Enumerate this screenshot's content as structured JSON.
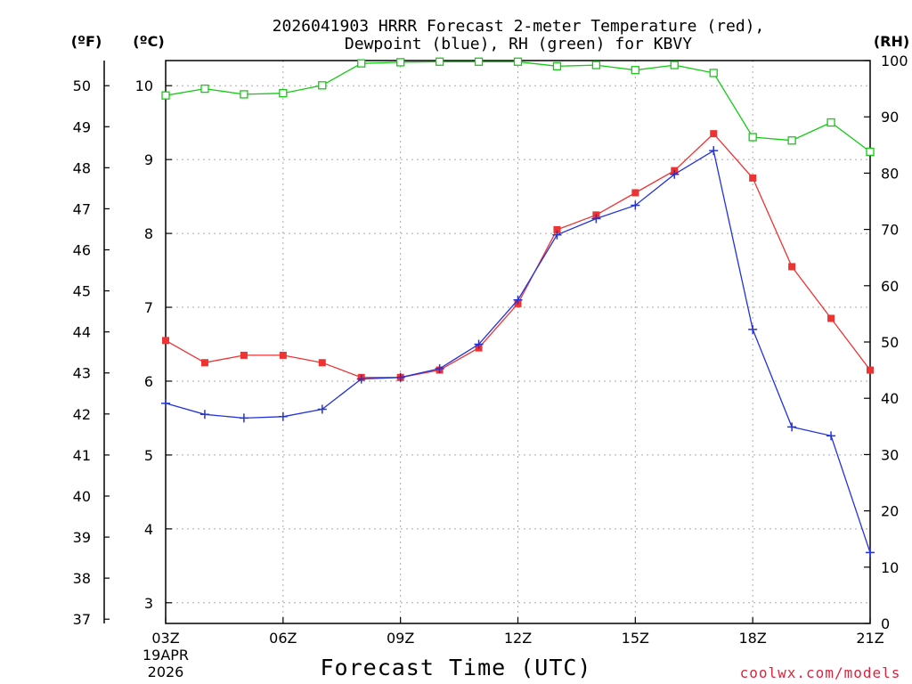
{
  "chart_data": {
    "type": "line",
    "title_line1": "2026041903 HRRR Forecast 2-meter Temperature (red),",
    "title_line2": "Dewpoint (blue), RH (green) for KBVY",
    "xlabel": "Forecast Time (UTC)",
    "date_label_day": "19APR",
    "date_label_year": "2026",
    "credit": "coolwx.com/models",
    "unit_f": "(ºF)",
    "unit_c": "(ºC)",
    "unit_rh": "(RH)",
    "x_hours": [
      3,
      4,
      5,
      6,
      7,
      8,
      9,
      10,
      11,
      12,
      13,
      14,
      15,
      16,
      17,
      18,
      19,
      20,
      21
    ],
    "x_tick_hours": [
      3,
      6,
      9,
      12,
      15,
      18,
      21
    ],
    "x_tick_labels": [
      "03Z",
      "06Z",
      "09Z",
      "12Z",
      "15Z",
      "18Z",
      "21Z"
    ],
    "celsius_range": [
      2.72,
      10.34
    ],
    "celsius_ticks": [
      3,
      4,
      5,
      6,
      7,
      8,
      9,
      10
    ],
    "celsius_tick_labels": [
      "3",
      "4",
      "5",
      "6",
      "7",
      "8",
      "9",
      "10"
    ],
    "fahrenheit_ticks": [
      37,
      38,
      39,
      40,
      41,
      42,
      43,
      44,
      45,
      46,
      47,
      48,
      49,
      50
    ],
    "fahrenheit_tick_labels": [
      "37",
      "38",
      "39",
      "40",
      "41",
      "42",
      "43",
      "44",
      "45",
      "46",
      "47",
      "48",
      "49",
      "50"
    ],
    "rh_range": [
      0,
      100
    ],
    "rh_ticks": [
      0,
      10,
      20,
      30,
      40,
      50,
      60,
      70,
      80,
      90,
      100
    ],
    "rh_tick_labels": [
      "0",
      "10",
      "20",
      "30",
      "40",
      "50",
      "60",
      "70",
      "80",
      "90",
      "100"
    ],
    "series": [
      {
        "name": "Temperature",
        "color": "#ee3333",
        "marker": "filled-square",
        "values": [
          6.55,
          6.25,
          6.35,
          6.35,
          6.25,
          6.05,
          6.05,
          6.15,
          6.45,
          7.05,
          8.05,
          8.25,
          8.55,
          8.85,
          9.35,
          8.75,
          7.55,
          6.85,
          6.15
        ]
      },
      {
        "name": "Dewpoint",
        "color": "#2233dd",
        "marker": "plus",
        "values": [
          5.7,
          5.55,
          5.5,
          5.52,
          5.62,
          6.03,
          6.05,
          6.17,
          6.5,
          7.1,
          7.98,
          8.2,
          8.38,
          8.8,
          9.12,
          6.7,
          5.38,
          5.26,
          3.68
        ]
      },
      {
        "name": "RH",
        "color": "#11cc11",
        "marker": "open-square",
        "values": [
          93.8,
          95.0,
          94.0,
          94.2,
          95.6,
          99.5,
          99.7,
          99.8,
          99.8,
          99.8,
          99.0,
          99.2,
          98.3,
          99.2,
          97.8,
          86.4,
          85.8,
          89.0,
          83.8
        ]
      }
    ]
  }
}
